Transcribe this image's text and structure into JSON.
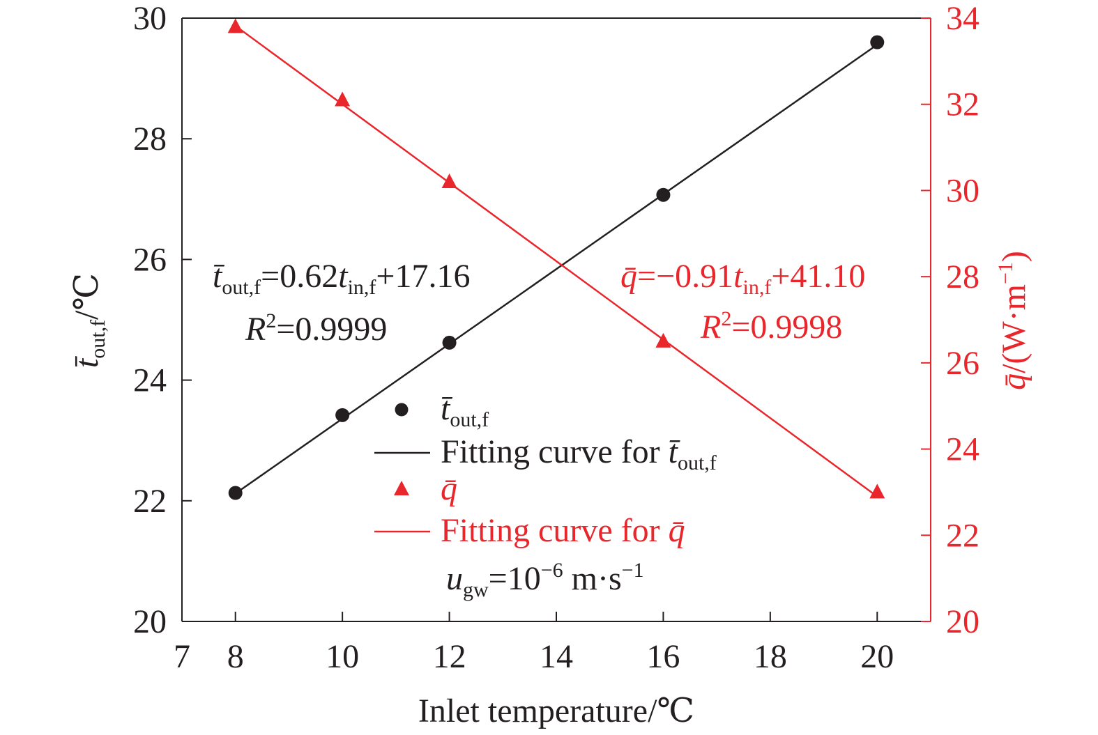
{
  "chart_data": {
    "type": "scatter",
    "x": [
      8,
      10,
      12,
      16,
      20
    ],
    "xlabel": "Inlet temperature/℃",
    "xlim": [
      7,
      21
    ],
    "x_ticks": [
      7,
      8,
      10,
      12,
      14,
      16,
      18,
      20
    ],
    "ylabel_left": {
      "main": "t̄",
      "sub": "out,f",
      "tail": "/℃"
    },
    "ylim_left": [
      20,
      30
    ],
    "y_ticks_left": [
      20,
      22,
      24,
      26,
      28,
      30
    ],
    "ylabel_right": {
      "main": "q̄",
      "tail": "/(W·m",
      "sup": "−1",
      "close": ")"
    },
    "ylim_right": [
      20,
      34
    ],
    "y_ticks_right": [
      20,
      22,
      24,
      26,
      28,
      30,
      32,
      34
    ],
    "series": [
      {
        "axis": "left",
        "marker": "circle",
        "color": "#231f20",
        "values": [
          22.13,
          23.42,
          24.62,
          27.07,
          29.6
        ],
        "fit": {
          "slope": 0.62,
          "intercept": 17.16
        }
      },
      {
        "axis": "right",
        "marker": "triangle",
        "color": "#e8262b",
        "values": [
          33.8,
          32.1,
          30.2,
          26.5,
          23.0
        ],
        "fit": {
          "slope": -0.91,
          "intercept": 41.1
        }
      }
    ],
    "annotations": {
      "eq_left": {
        "lhs": "t̄",
        "lhs_sub": "out,f",
        "mid": "=0.62",
        "var": "t",
        "var_sub": "in,f",
        "tail": "+17.16"
      },
      "r2_left": {
        "r": "R",
        "sup": "2",
        "val": "=0.9999"
      },
      "eq_right": {
        "lhs": "q̄",
        "mid": "=−0.91",
        "var": "t",
        "var_sub": "in,f",
        "tail": "+41.10"
      },
      "r2_right": {
        "r": "R",
        "sup": "2",
        "val": "=0.9998"
      },
      "condition": {
        "u": "u",
        "u_sub": "gw",
        "eq": "=10",
        "exp": "−6",
        "unit": " m·s",
        "unit_sup": "−1"
      }
    },
    "legend": {
      "position": "center",
      "entries": [
        {
          "label": "",
          "sym": "t̄",
          "sub": "out,f"
        },
        {
          "label": "Fitting curve for ",
          "sym": "t̄",
          "sub": "out,f"
        },
        {
          "label": "",
          "sym": "q̄",
          "sub": ""
        },
        {
          "label": "Fitting curve for ",
          "sym": "q̄",
          "sub": ""
        }
      ]
    },
    "colors": {
      "left": "#231f20",
      "right": "#e8262b"
    }
  }
}
